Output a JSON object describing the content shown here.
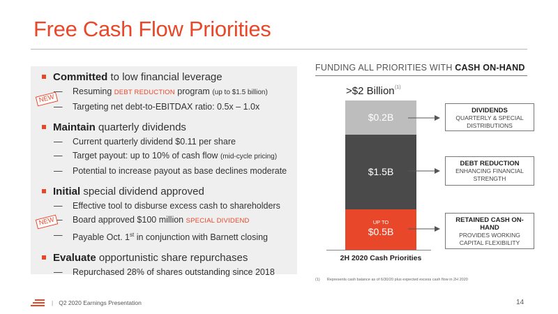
{
  "slide": {
    "title": "Free Cash Flow Priorities"
  },
  "left": {
    "groups": [
      {
        "bold": "Committed",
        "rest": " to low financial leverage",
        "subs": [
          {
            "pre": "Resuming ",
            "tag": "DEBT REDUCTION",
            "mid": " program ",
            "small": "(up to $1.5 billion)"
          },
          {
            "pre": "Targeting net debt-to-EBITDAX ratio: 0.5x – 1.0x"
          }
        ]
      },
      {
        "bold": "Maintain",
        "rest": " quarterly dividends",
        "subs": [
          {
            "pre": "Current quarterly dividend $0.11 per share"
          },
          {
            "pre": "Target payout: up to 10% of cash flow ",
            "small": "(mid-cycle pricing)"
          },
          {
            "pre": "Potential to increase payout as base declines moderate"
          }
        ]
      },
      {
        "bold": "Initial",
        "rest": " special dividend approved",
        "subs": [
          {
            "pre": "Effective tool to disburse excess cash to shareholders"
          },
          {
            "pre": "Board approved $100 million ",
            "tag": "SPECIAL DIVIDEND"
          },
          {
            "pre": "Payable Oct. 1",
            "sup": "st",
            "post": " in conjunction with Barnett closing"
          }
        ]
      },
      {
        "bold": "Evaluate",
        "rest": " opportunistic share repurchases",
        "subs": [
          {
            "pre": "Repurchased 28% of shares outstanding since 2018"
          }
        ]
      }
    ],
    "badges": [
      "NEW",
      "NEW"
    ]
  },
  "chart_data": {
    "type": "bar",
    "title": "FUNDING ALL PRIORITIES WITH CASH ON-HAND",
    "title_plain": "FUNDING ALL PRIORITIES WITH ",
    "title_bold": "CASH ON-HAND",
    "categories": [
      "2H 2020 Cash Priorities"
    ],
    "stacked": true,
    "total_label": ">$2 Billion",
    "total_footnote_marker": "(1)",
    "series": [
      {
        "name": "Retained Cash On-Hand",
        "values": [
          0.5
        ],
        "label": "$0.5B",
        "prefix": "UP TO",
        "color": "#e8472a"
      },
      {
        "name": "Debt Reduction",
        "values": [
          1.5
        ],
        "label": "$1.5B",
        "color": "#4a4a4a"
      },
      {
        "name": "Dividends",
        "values": [
          0.2
        ],
        "label": "$0.2B",
        "color": "#bdbdbd"
      }
    ],
    "unit": "$B",
    "annotations": [
      {
        "title": "DIVIDENDS",
        "subtitle": "QUARTERLY & SPECIAL DISTRIBUTIONS"
      },
      {
        "title": "DEBT REDUCTION",
        "subtitle": "ENHANCING FINANCIAL STRENGTH"
      },
      {
        "title": "RETAINED CASH ON-HAND",
        "subtitle": "PROVIDES WORKING CAPITAL FLEXIBILITY"
      }
    ]
  },
  "footnote": {
    "number": "(1)",
    "text": "Represents cash balance as of 6/30/20 plus expected excess cash flow in 2H 2020"
  },
  "footer": {
    "separator": "|",
    "label": "Q2 2020 Earnings Presentation",
    "page": "14"
  },
  "colors": {
    "accent": "#e8472a",
    "dark_bar": "#4a4a4a",
    "light_bar": "#bdbdbd",
    "panel": "#efefef"
  }
}
